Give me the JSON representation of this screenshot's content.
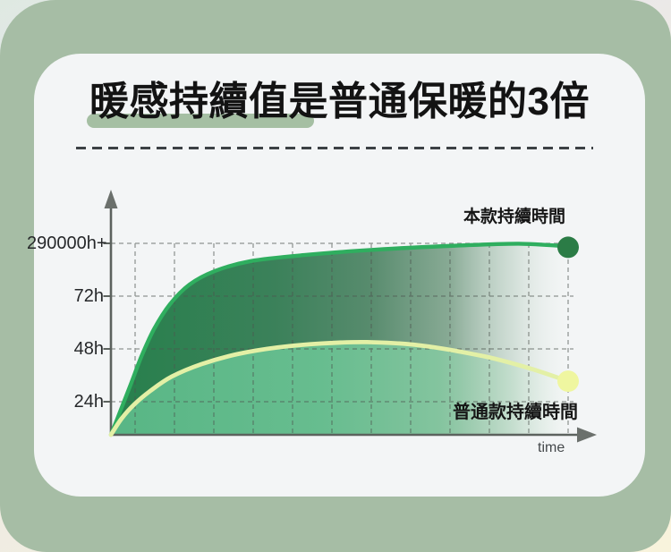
{
  "page": {
    "frame_color": "#a6bda5",
    "card_color": "#f3f5f6",
    "corner_colors": {
      "top_left": "#dfe9e2",
      "top_right": "#e5e4ee",
      "bottom": "#f8f3dc"
    }
  },
  "header": {
    "title": "暖感持續值是普通保暖的3倍",
    "highlight_color": "#a5bfa3"
  },
  "chart_data": {
    "type": "area",
    "title": "暖感持續值是普通保暖的3倍",
    "xlabel": "time",
    "ylabel": "",
    "grid": true,
    "legend_position": "inline-annotations",
    "y_tick_labels": [
      "290000h+",
      "72h",
      "48h",
      "24h"
    ],
    "x_tick_labels": [],
    "axis_color": "#5c625e",
    "arrow_color": "#6b706c",
    "grid_color": "#4e554f",
    "series": [
      {
        "name": "本款持續時間",
        "plateau_level": "290000h+",
        "stroke_color": "#2fae5f",
        "dot_color": "#2b7c46",
        "fill_stops": [
          [
            0,
            "#27804c",
            1
          ],
          [
            0.35,
            "#3b815a",
            1
          ],
          [
            0.55,
            "#578b6d",
            1
          ],
          [
            0.72,
            "#7ba189",
            0.9
          ],
          [
            0.86,
            "#b2cabb",
            0.5
          ],
          [
            0.96,
            "#e8efe9",
            0.15
          ],
          [
            1,
            "#ffffff",
            0
          ]
        ],
        "points": [
          [
            0,
            0
          ],
          [
            0.02,
            0.121
          ],
          [
            0.043,
            0.262
          ],
          [
            0.067,
            0.411
          ],
          [
            0.094,
            0.551
          ],
          [
            0.129,
            0.682
          ],
          [
            0.172,
            0.785
          ],
          [
            0.227,
            0.855
          ],
          [
            0.305,
            0.907
          ],
          [
            0.423,
            0.939
          ],
          [
            0.579,
            0.967
          ],
          [
            0.755,
            0.988
          ],
          [
            0.892,
            0.998
          ],
          [
            1.0,
            0.984
          ]
        ]
      },
      {
        "name": "普通款持續時間",
        "plateau_level": "48h",
        "stroke_color": "#e3f0a6",
        "dot_color": "#eff6a0",
        "fill_stops": [
          [
            0,
            "#58b685",
            1
          ],
          [
            0.45,
            "#67bd8f",
            1
          ],
          [
            0.7,
            "#84c7a0",
            0.92
          ],
          [
            0.85,
            "#b7dcc4",
            0.55
          ],
          [
            0.95,
            "#e3f0e7",
            0.2
          ],
          [
            1,
            "#ffffff",
            0
          ]
        ],
        "points": [
          [
            0,
            0
          ],
          [
            0.023,
            0.084
          ],
          [
            0.051,
            0.159
          ],
          [
            0.086,
            0.229
          ],
          [
            0.133,
            0.304
          ],
          [
            0.198,
            0.369
          ],
          [
            0.276,
            0.421
          ],
          [
            0.364,
            0.456
          ],
          [
            0.462,
            0.477
          ],
          [
            0.56,
            0.484
          ],
          [
            0.677,
            0.467
          ],
          [
            0.814,
            0.411
          ],
          [
            0.912,
            0.35
          ],
          [
            1.0,
            0.28
          ]
        ]
      }
    ]
  }
}
